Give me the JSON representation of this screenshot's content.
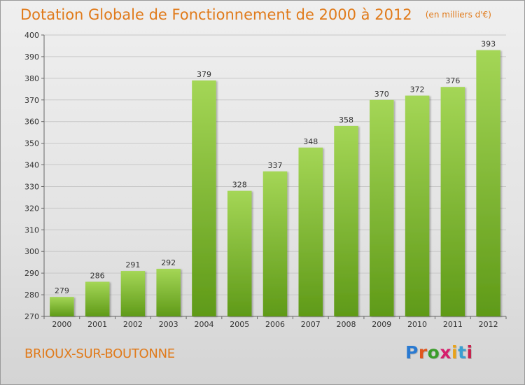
{
  "title": "Dotation Globale de Fonctionnement de 2000 à 2012",
  "subtitle": "(en milliers d'€)",
  "commune": "BRIOUX-SUR-BOUTONNE",
  "logo": {
    "text": "Proxiti",
    "letter_colors": [
      "#2a7ad1",
      "#e0561d",
      "#3a9d2a",
      "#d61f6c",
      "#e8a21a",
      "#3a9fd1",
      "#c7224e"
    ]
  },
  "colors": {
    "title": "#e07a1a",
    "bar_top": "#a4d656",
    "bar_bottom": "#5f9a18",
    "grid": "#c8c8c8"
  },
  "chart_data": {
    "type": "bar",
    "title": "Dotation Globale de Fonctionnement de 2000 à 2012",
    "subtitle": "(en milliers d'€)",
    "categories": [
      "2000",
      "2001",
      "2002",
      "2003",
      "2004",
      "2005",
      "2006",
      "2007",
      "2008",
      "2009",
      "2010",
      "2011",
      "2012"
    ],
    "values": [
      279,
      286,
      291,
      292,
      379,
      328,
      337,
      348,
      358,
      370,
      372,
      376,
      393
    ],
    "ylim": [
      270,
      400
    ],
    "yticks": [
      270,
      280,
      290,
      300,
      310,
      320,
      330,
      340,
      350,
      360,
      370,
      380,
      390,
      400
    ],
    "grid": true,
    "data_labels": true
  }
}
